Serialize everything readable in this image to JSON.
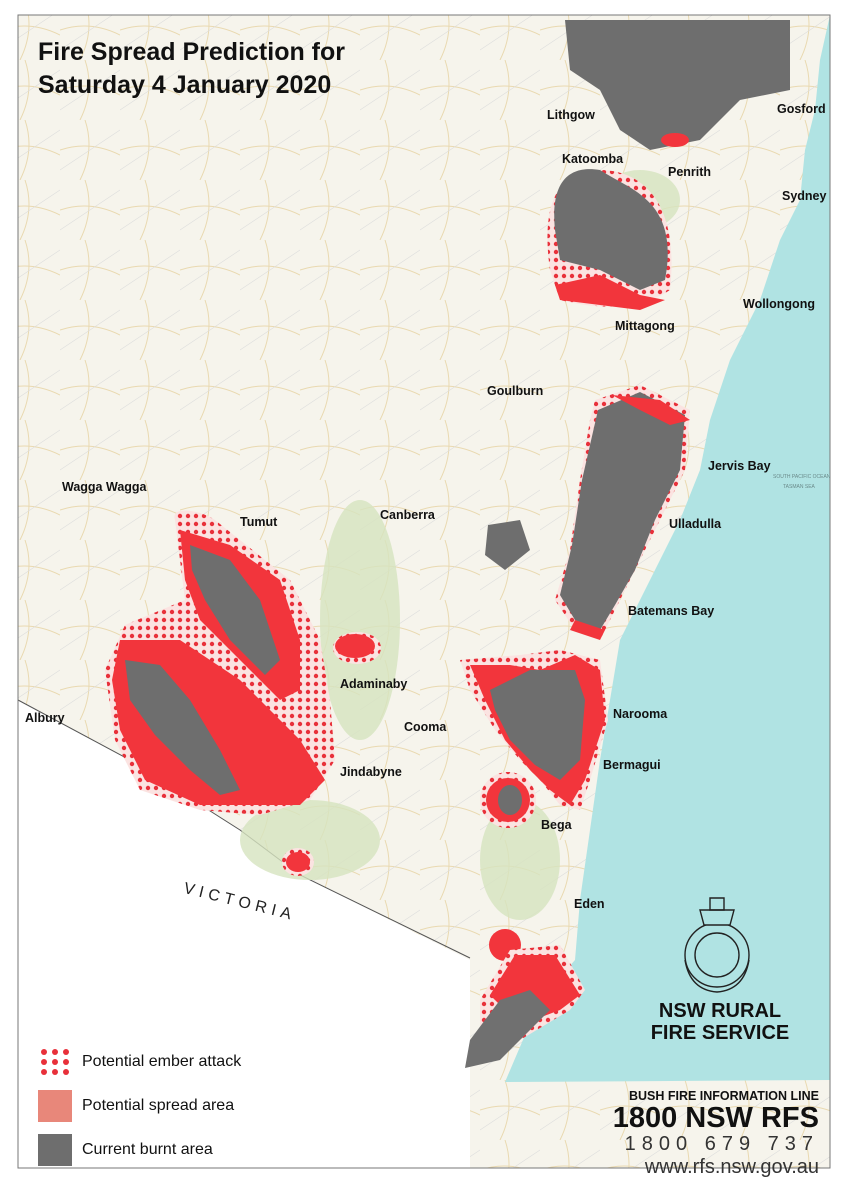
{
  "title": {
    "line1": "Fire Spread Prediction for",
    "line2": "Saturday 4 January 2020"
  },
  "colors": {
    "ocean": "#b0e3e3",
    "land": "#f6f4ec",
    "spread": "#f2353c",
    "burnt": "#6e6e6e",
    "ember": "#e8303a",
    "legend_spread": "#e8877a"
  },
  "towns": [
    "Lithgow",
    "Gosford",
    "Katoomba",
    "Penrith",
    "Sydney",
    "Wollongong",
    "Mittagong",
    "Goulburn",
    "Jervis Bay",
    "Wagga Wagga",
    "Tumut",
    "Canberra",
    "Ulladulla",
    "Batemans Bay",
    "Adaminaby",
    "Albury",
    "Cooma",
    "Narooma",
    "Jindabyne",
    "Bermagui",
    "Bega",
    "Eden"
  ],
  "region_label": "VICTORIA",
  "ocean_labels": [
    "SOUTH PACIFIC OCEAN",
    "TASMAN SEA"
  ],
  "legend": [
    {
      "label": "Potential ember attack",
      "icon": "ember-dots"
    },
    {
      "label": "Potential spread area",
      "icon": "salmon-square"
    },
    {
      "label": "Current burnt area",
      "icon": "grey-square"
    }
  ],
  "logo": {
    "line1": "NSW RURAL",
    "line2": "FIRE SERVICE",
    "crest": "NSW RURAL FIRE SERVICE"
  },
  "info": {
    "line1": "BUSH FIRE INFORMATION LINE",
    "line2": "1800 NSW RFS",
    "line3": "1800 679 737",
    "line4": "www.rfs.nsw.gov.au"
  }
}
